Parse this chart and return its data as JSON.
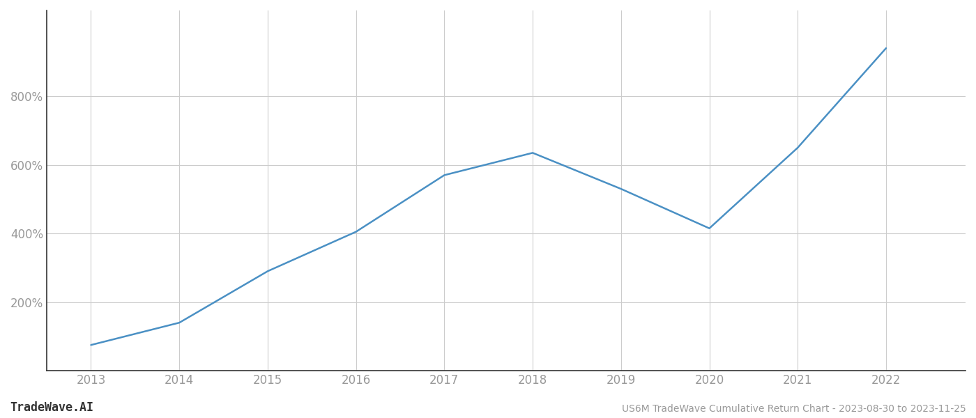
{
  "years": [
    2013,
    2014,
    2015,
    2016,
    2017,
    2018,
    2019,
    2020,
    2021,
    2022
  ],
  "values": [
    75,
    140,
    290,
    405,
    570,
    635,
    530,
    415,
    650,
    940
  ],
  "line_color": "#4a90c4",
  "line_width": 1.8,
  "bg_color": "#ffffff",
  "grid_color": "#cccccc",
  "title": "US6M TradeWave Cumulative Return Chart - 2023-08-30 to 2023-11-25",
  "watermark": "TradeWave.AI",
  "yticks": [
    200,
    400,
    600,
    800
  ],
  "ylim_min": 0,
  "ylim_max": 1050,
  "xlim_min": 2012.5,
  "xlim_max": 2022.9,
  "xticks": [
    2013,
    2014,
    2015,
    2016,
    2017,
    2018,
    2019,
    2020,
    2021,
    2022
  ],
  "tick_color": "#999999",
  "spine_color": "#aaaaaa",
  "left_spine_color": "#333333",
  "bottom_spine_color": "#333333",
  "tick_fontsize": 12,
  "footer_fontsize_watermark": 12,
  "footer_fontsize_title": 10
}
